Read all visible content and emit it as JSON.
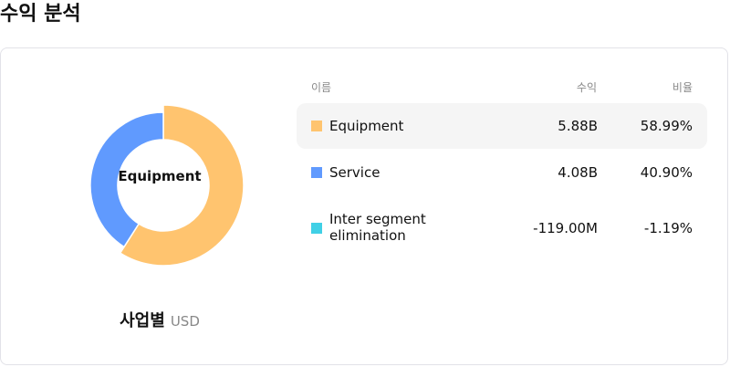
{
  "page_title": "수익 분석",
  "chart": {
    "center_label": "Equipment",
    "caption": "사업별",
    "unit": "USD"
  },
  "table": {
    "headers": {
      "name": "이름",
      "revenue": "수익",
      "ratio": "비율"
    },
    "rows": [
      {
        "name": "Equipment",
        "revenue": "5.88B",
        "ratio": "58.99%",
        "color": "#ffc46f",
        "active": true
      },
      {
        "name": "Service",
        "revenue": "4.08B",
        "ratio": "40.90%",
        "color": "#609afe",
        "active": false
      },
      {
        "name": "Inter segment elimination",
        "revenue": "-119.00M",
        "ratio": "-1.19%",
        "color": "#40d0e6",
        "active": false
      }
    ]
  },
  "chart_data": {
    "type": "pie",
    "categories": [
      "Equipment",
      "Service",
      "Inter segment elimination"
    ],
    "values": [
      5.88,
      4.08,
      -0.119
    ],
    "unit": "B USD",
    "colors": [
      "#ffc46f",
      "#609afe",
      "#40d0e6"
    ],
    "highlighted": "Equipment",
    "donut": true
  }
}
